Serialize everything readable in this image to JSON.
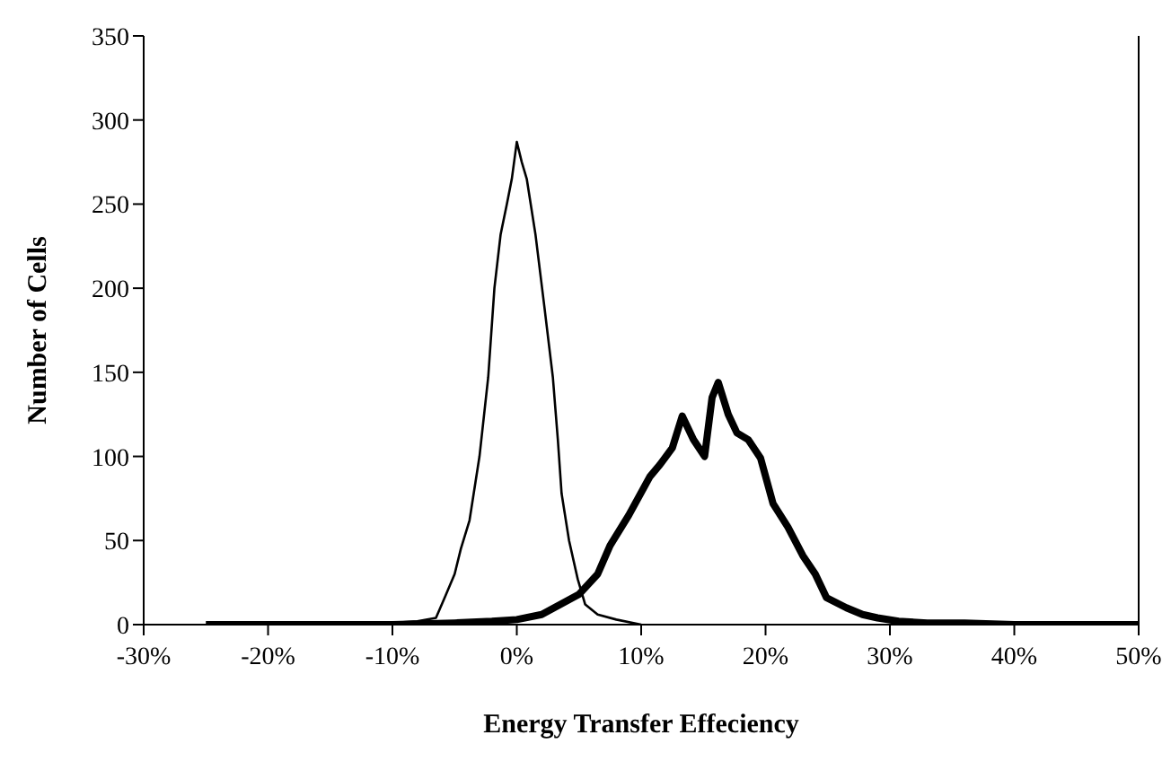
{
  "chart_data": {
    "type": "line",
    "xlabel": "Energy Transfer Effeciency",
    "ylabel": "Number of Cells",
    "xlim": [
      -30,
      50
    ],
    "xticks": [
      {
        "value": -30,
        "label": "-30%"
      },
      {
        "value": -20,
        "label": "-20%"
      },
      {
        "value": -10,
        "label": "-10%"
      },
      {
        "value": 0,
        "label": "0%"
      },
      {
        "value": 10,
        "label": "10%"
      },
      {
        "value": 20,
        "label": "20%"
      },
      {
        "value": 30,
        "label": "30%"
      },
      {
        "value": 40,
        "label": "40%"
      },
      {
        "value": 50,
        "label": "50%"
      }
    ],
    "ylim": [
      0,
      350
    ],
    "yticks": [
      0,
      50,
      100,
      150,
      200,
      250,
      300,
      350
    ],
    "marker": "none",
    "line_style": "solid",
    "series": [
      {
        "color": "#000000",
        "x": [
          -25,
          -15,
          -10,
          -8,
          -6.5,
          -5.8,
          -5,
          -4.5,
          -3.8,
          -3,
          -2.3,
          -1.8,
          -1.3,
          -0.8,
          -0.4,
          0,
          0.4,
          0.8,
          1.5,
          2.2,
          2.9,
          3.3,
          3.6,
          4.2,
          4.9,
          5.5,
          6.5,
          8,
          10
        ],
        "values": [
          0,
          0,
          1,
          2,
          4,
          16,
          30,
          45,
          62,
          100,
          147,
          200,
          232,
          250,
          265,
          287,
          275,
          265,
          232,
          190,
          147,
          110,
          78,
          50,
          27,
          12,
          6,
          3,
          0
        ]
      },
      {
        "color": "#000000",
        "x": [
          -25,
          -15,
          -10,
          -5,
          -2,
          0,
          2,
          3.5,
          5,
          6.5,
          7.5,
          9,
          10.7,
          11.5,
          12.5,
          13.3,
          14.2,
          15.1,
          15.7,
          16.2,
          17,
          17.7,
          18.6,
          19.6,
          20.6,
          21.8,
          23,
          24,
          24.9,
          26.5,
          27.8,
          29,
          30.7,
          33,
          36,
          40,
          45,
          50
        ],
        "values": [
          0,
          0,
          0,
          1,
          2,
          3,
          6,
          12,
          18,
          30,
          47,
          65,
          88,
          95,
          105,
          124,
          110,
          100,
          135,
          144,
          125,
          114,
          110,
          99,
          72,
          58,
          41,
          30,
          16,
          10,
          6,
          4,
          2,
          1,
          1,
          0,
          0,
          0
        ]
      }
    ]
  }
}
